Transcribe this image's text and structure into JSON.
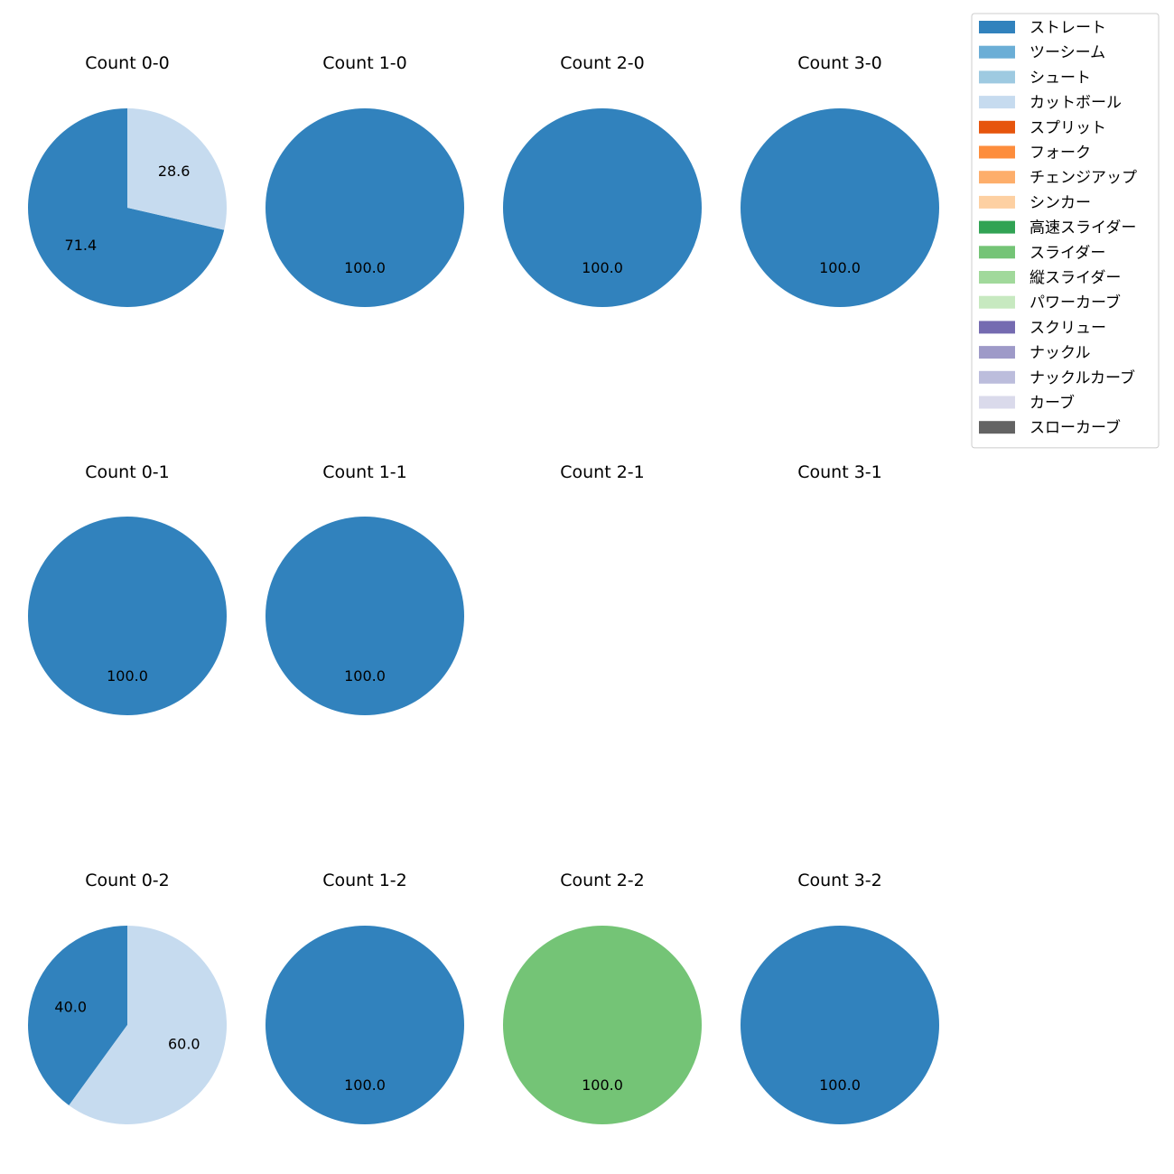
{
  "chart_data": {
    "type": "pie",
    "legend": {
      "placement": "top-right",
      "entries": [
        {
          "label": "ストレート",
          "color": "#3182bd"
        },
        {
          "label": "ツーシーム",
          "color": "#6baed6"
        },
        {
          "label": "シュート",
          "color": "#9ecae1"
        },
        {
          "label": "カットボール",
          "color": "#c6dbef"
        },
        {
          "label": "スプリット",
          "color": "#e6550d"
        },
        {
          "label": "フォーク",
          "color": "#fd8d3c"
        },
        {
          "label": "チェンジアップ",
          "color": "#fdae6b"
        },
        {
          "label": "シンカー",
          "color": "#fdd0a2"
        },
        {
          "label": "高速スライダー",
          "color": "#31a354"
        },
        {
          "label": "スライダー",
          "color": "#74c476"
        },
        {
          "label": "縦スライダー",
          "color": "#a1d99b"
        },
        {
          "label": "パワーカーブ",
          "color": "#c7e9c0"
        },
        {
          "label": "スクリュー",
          "color": "#756bb1"
        },
        {
          "label": "ナックル",
          "color": "#9e9ac8"
        },
        {
          "label": "ナックルカーブ",
          "color": "#bcbddc"
        },
        {
          "label": "カーブ",
          "color": "#dadaeb"
        },
        {
          "label": "スローカーブ",
          "color": "#636363"
        }
      ]
    },
    "panels": [
      {
        "title": "Count 0-0",
        "slices": [
          {
            "pitch": "ストレート",
            "value": 71.4
          },
          {
            "pitch": "カットボール",
            "value": 28.6
          }
        ]
      },
      {
        "title": "Count 1-0",
        "slices": [
          {
            "pitch": "ストレート",
            "value": 100.0
          }
        ]
      },
      {
        "title": "Count 2-0",
        "slices": [
          {
            "pitch": "ストレート",
            "value": 100.0
          }
        ]
      },
      {
        "title": "Count 3-0",
        "slices": [
          {
            "pitch": "ストレート",
            "value": 100.0
          }
        ]
      },
      {
        "title": "Count 0-1",
        "slices": [
          {
            "pitch": "ストレート",
            "value": 100.0
          }
        ]
      },
      {
        "title": "Count 1-1",
        "slices": [
          {
            "pitch": "ストレート",
            "value": 100.0
          }
        ]
      },
      {
        "title": "Count 2-1",
        "slices": []
      },
      {
        "title": "Count 3-1",
        "slices": []
      },
      {
        "title": "Count 0-2",
        "slices": [
          {
            "pitch": "ストレート",
            "value": 40.0
          },
          {
            "pitch": "カットボール",
            "value": 60.0
          }
        ]
      },
      {
        "title": "Count 1-2",
        "slices": [
          {
            "pitch": "ストレート",
            "value": 100.0
          }
        ]
      },
      {
        "title": "Count 2-2",
        "slices": [
          {
            "pitch": "スライダー",
            "value": 100.0
          }
        ]
      },
      {
        "title": "Count 3-2",
        "slices": [
          {
            "pitch": "ストレート",
            "value": 100.0
          }
        ]
      }
    ]
  }
}
